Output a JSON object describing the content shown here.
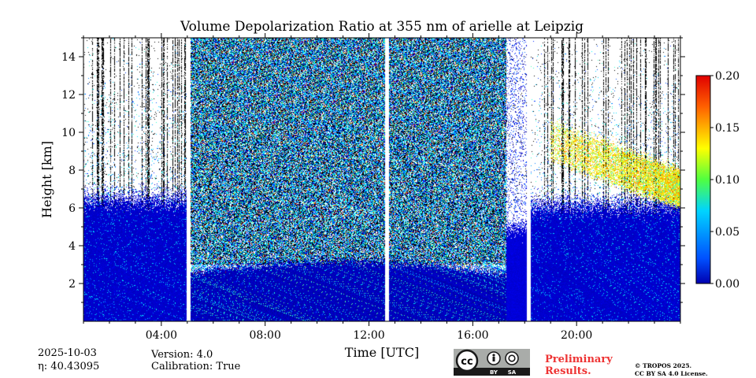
{
  "chart_data": {
    "type": "heatmap",
    "title": "Volume Depolarization Ratio at 355 nm of arielle at Leipzig",
    "xlabel": "Time [UTC]",
    "ylabel": "Height [km]",
    "xlim_hours": [
      1.0,
      24.0
    ],
    "ylim_km": [
      0,
      15
    ],
    "x_ticks": [
      {
        "value": 4,
        "label": "04:00"
      },
      {
        "value": 8,
        "label": "08:00"
      },
      {
        "value": 12,
        "label": "12:00"
      },
      {
        "value": 16,
        "label": "16:00"
      },
      {
        "value": 20,
        "label": "20:00"
      }
    ],
    "y_ticks": [
      {
        "value": 2,
        "label": "2"
      },
      {
        "value": 4,
        "label": "4"
      },
      {
        "value": 6,
        "label": "6"
      },
      {
        "value": 8,
        "label": "8"
      },
      {
        "value": 10,
        "label": "10"
      },
      {
        "value": 12,
        "label": "12"
      },
      {
        "value": 14,
        "label": "14"
      }
    ],
    "colorbar": {
      "min": 0.0,
      "max": 0.2,
      "colormap": "jet",
      "ticks": [
        {
          "value": 0.0,
          "label": "0.00"
        },
        {
          "value": 0.05,
          "label": "0.05"
        },
        {
          "value": 0.1,
          "label": "0.10"
        },
        {
          "value": 0.15,
          "label": "0.15"
        },
        {
          "value": 0.2,
          "label": "0.20"
        }
      ]
    },
    "data_gaps_hours": [
      [
        4.97,
        5.13
      ],
      [
        12.62,
        12.76
      ],
      [
        18.08,
        18.23
      ]
    ],
    "regimes": [
      {
        "name": "night boundary layer",
        "from_hour": 1.0,
        "to_hour": 4.97,
        "typical_value": 0.01,
        "top_km": 6.5
      },
      {
        "name": "noisy daytime",
        "from_hour": 5.13,
        "to_hour": 17.3,
        "typical_value": 0.07,
        "top_km": 15
      },
      {
        "name": "evening boundary layer",
        "from_hour": 18.23,
        "to_hour": 24.0,
        "typical_value": 0.01,
        "top_km": 6.2
      },
      {
        "name": "depolarizing layer",
        "from_hour": 19.0,
        "to_hour": 24.0,
        "typical_value": 0.15,
        "bottom_km": 6.0,
        "top_km": 10.5
      }
    ]
  },
  "meta": {
    "date": "2025-10-03",
    "eta_label": "η: 40.43095",
    "version": "Version: 4.0",
    "calibration": "Calibration: True",
    "preliminary_line1": "Preliminary",
    "preliminary_line2": "Results.",
    "copyright_line1": "© TROPOS 2025.",
    "copyright_line2": "CC BY SA 4.0 License.",
    "cc_label": "cc",
    "by_label": "BY",
    "sa_label": "SA"
  },
  "colors": {
    "jet_low": "#0000b0",
    "blue_layer": "#1a7fdc",
    "prelim_red": "#ee3333",
    "cc_gray": "#a9aca9",
    "cc_dark": "#1a1a1a"
  }
}
